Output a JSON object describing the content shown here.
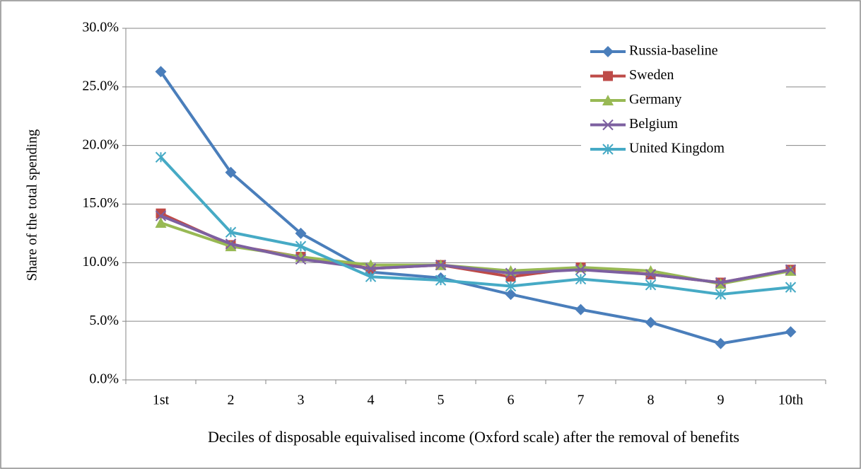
{
  "chart_data": {
    "type": "line",
    "x_label": "Deciles of disposable equivalised income (Oxford scale) after the removal of benefits",
    "y_label": "Share of the total spending",
    "categories": [
      "1st",
      "2",
      "3",
      "4",
      "5",
      "6",
      "7",
      "8",
      "9",
      "10th"
    ],
    "series": [
      {
        "name": "Russia-baseline",
        "color": "#4a7ebb",
        "marker": "diamond",
        "values": [
          26.3,
          17.7,
          12.5,
          9.2,
          8.7,
          7.3,
          6.0,
          4.9,
          3.1,
          4.1
        ]
      },
      {
        "name": "Sweden",
        "color": "#be4b48",
        "marker": "square",
        "values": [
          14.2,
          11.5,
          10.5,
          9.5,
          9.8,
          8.8,
          9.6,
          9.0,
          8.3,
          9.4
        ]
      },
      {
        "name": "Germany",
        "color": "#98b954",
        "marker": "triangle",
        "values": [
          13.4,
          11.4,
          10.5,
          9.8,
          9.8,
          9.3,
          9.6,
          9.3,
          8.2,
          9.3
        ]
      },
      {
        "name": "Belgium",
        "color": "#7d60a0",
        "marker": "x",
        "values": [
          14.0,
          11.6,
          10.3,
          9.5,
          9.8,
          9.1,
          9.4,
          9.0,
          8.3,
          9.4
        ]
      },
      {
        "name": "United Kingdom",
        "color": "#46aac5",
        "marker": "star",
        "values": [
          19.0,
          12.6,
          11.4,
          8.8,
          8.5,
          8.0,
          8.6,
          8.1,
          7.3,
          7.9
        ]
      }
    ],
    "ylim": [
      0,
      30
    ],
    "yticks": [
      {
        "value": 0,
        "label": "0.0%"
      },
      {
        "value": 5,
        "label": "5.0%"
      },
      {
        "value": 10,
        "label": "10.0%"
      },
      {
        "value": 15,
        "label": "15.0%"
      },
      {
        "value": 20,
        "label": "20.0%"
      },
      {
        "value": 25,
        "label": "25.0%"
      },
      {
        "value": 30,
        "label": "30.0%"
      }
    ],
    "grid": true,
    "legend": "upper right"
  }
}
